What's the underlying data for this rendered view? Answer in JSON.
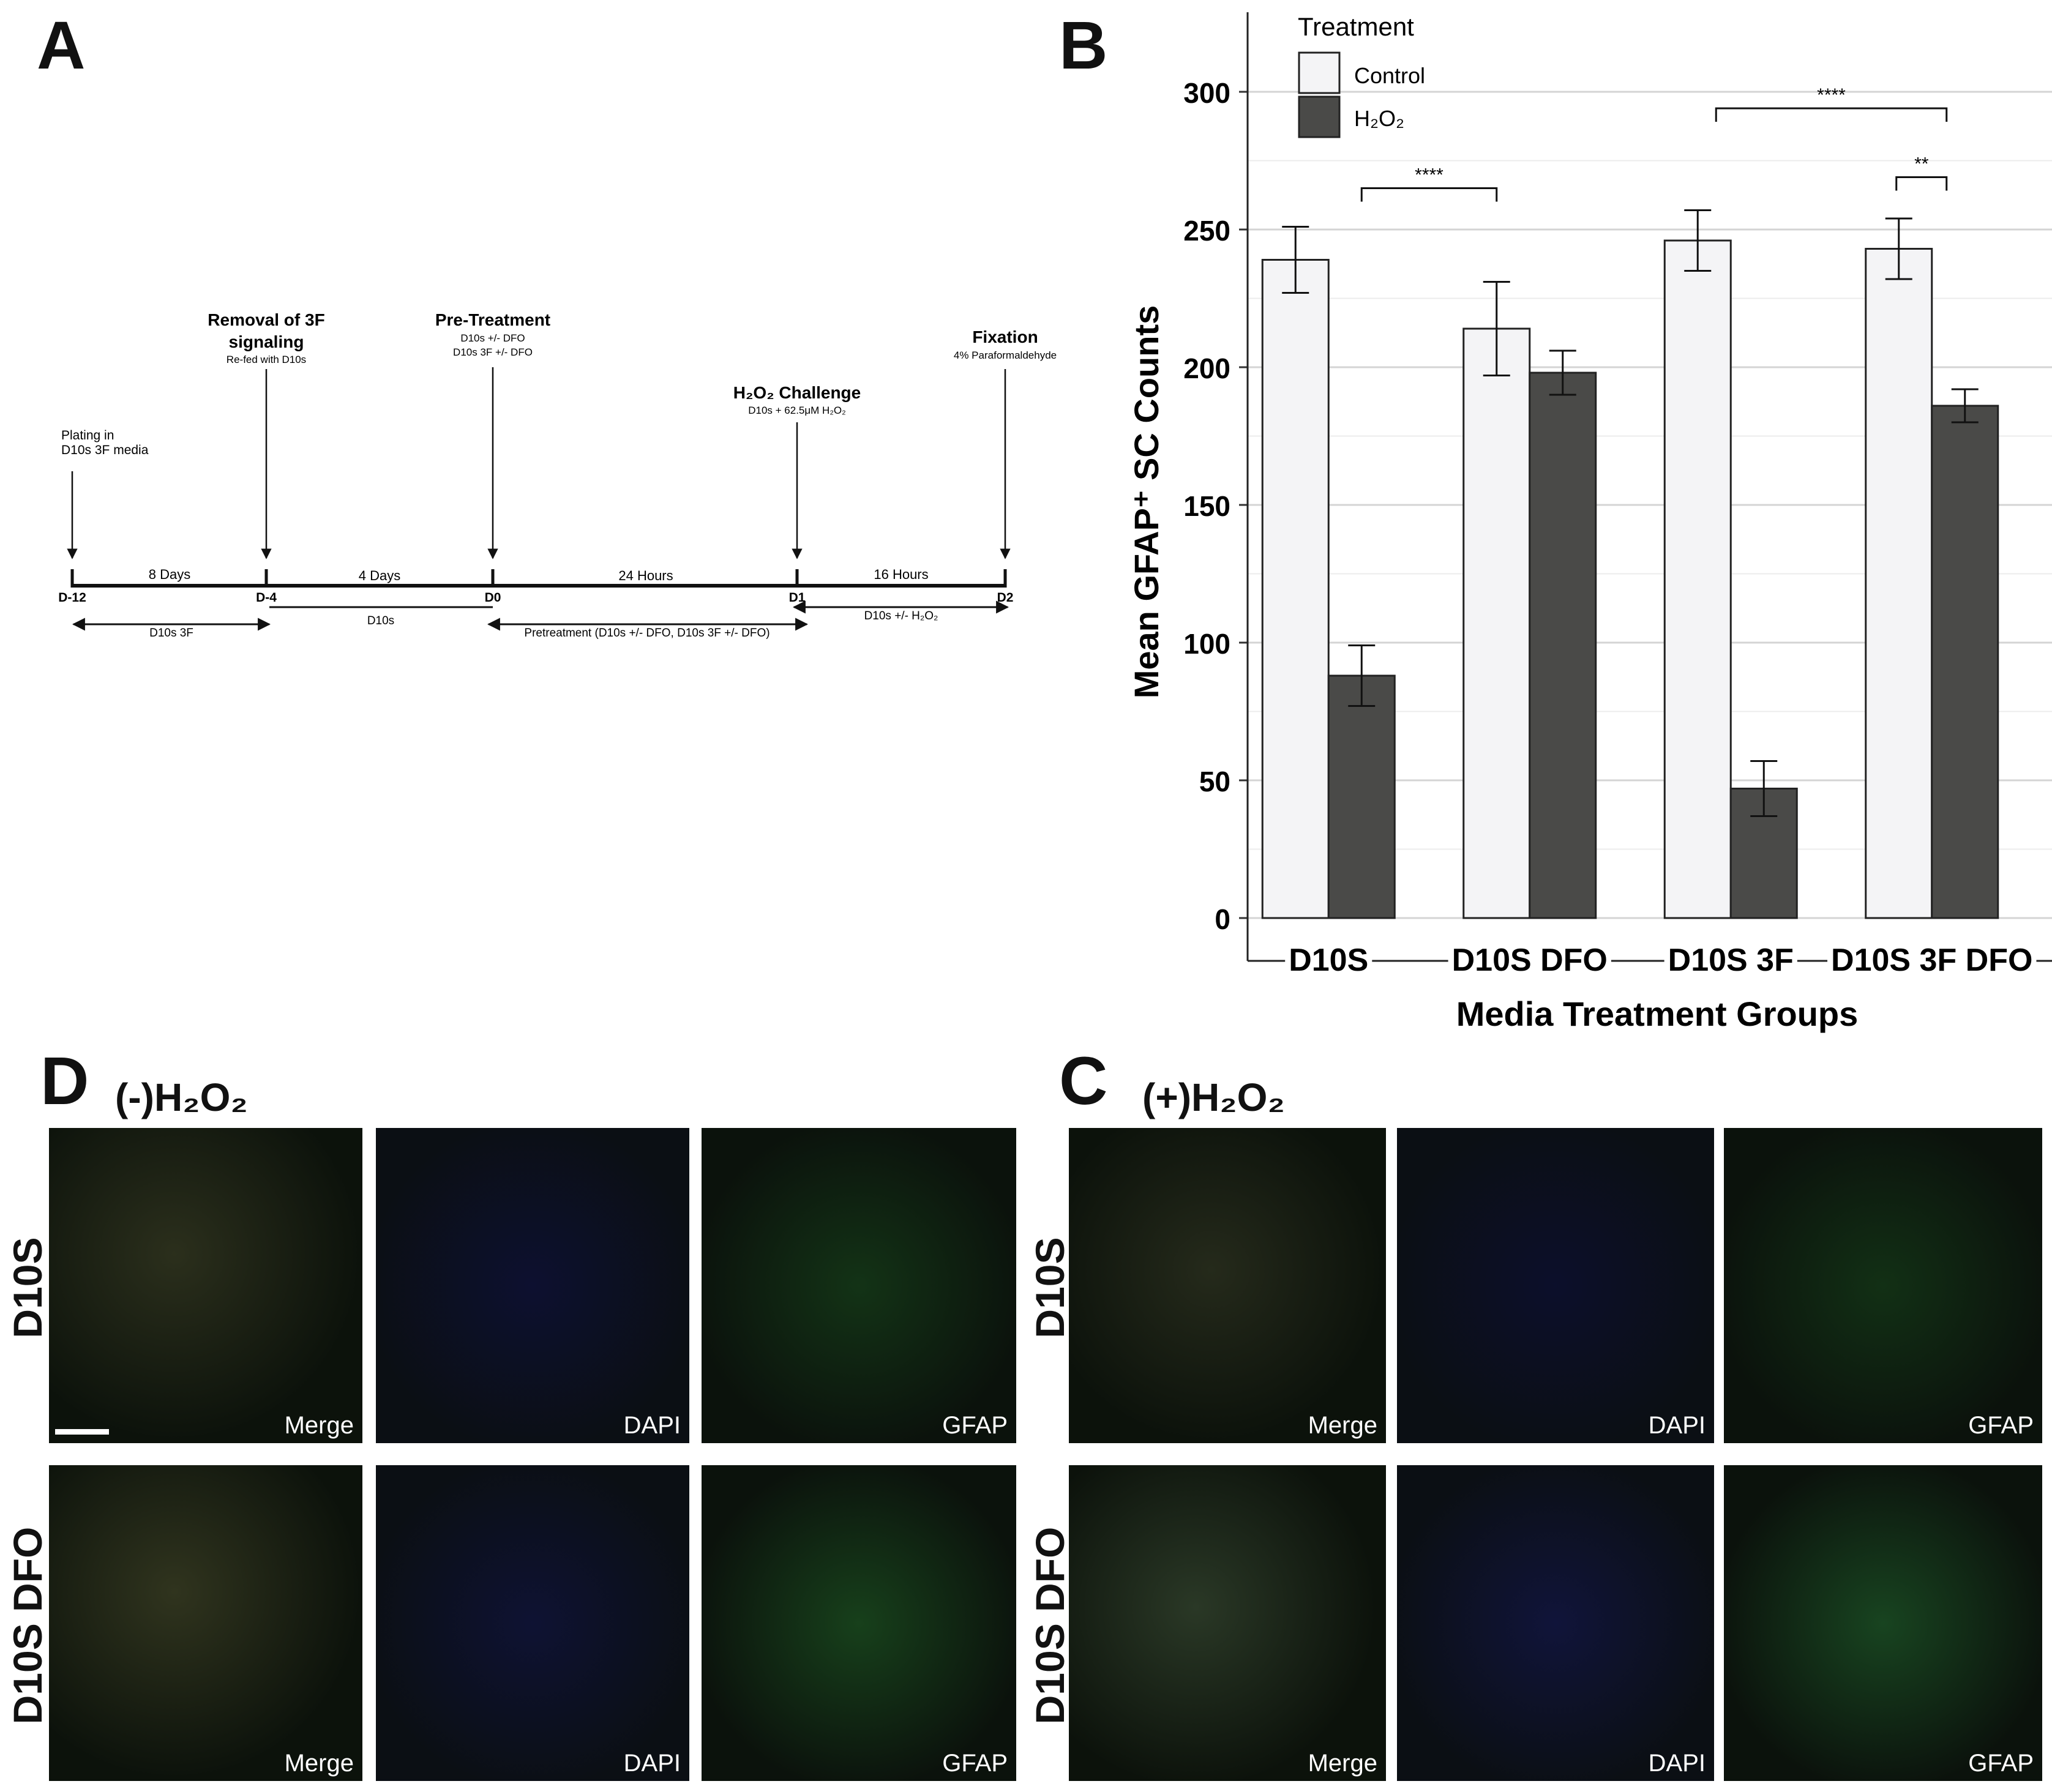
{
  "panels": {
    "a": "A",
    "b": "B",
    "c": "C",
    "d": "D"
  },
  "timeline": {
    "events": [
      {
        "title": "Plating in",
        "sub": "D10s 3F media"
      },
      {
        "title": "Removal of 3F",
        "title2": "signaling",
        "sub": "Re-fed with D10s"
      },
      {
        "title": "Pre-Treatment",
        "sub": "D10s +/- DFO",
        "sub2": "D10s 3F +/- DFO"
      },
      {
        "title": "H₂O₂ Challenge",
        "sub": "D10s + 62.5μM H₂O₂"
      },
      {
        "title": "Fixation",
        "sub": "4% Paraformaldehyde"
      }
    ],
    "ticks": [
      "D-12",
      "D-4",
      "D0",
      "D1",
      "D2"
    ],
    "durations": [
      "8 Days",
      "4 Days",
      "24 Hours",
      "16 Hours"
    ],
    "media": [
      "D10s 3F",
      "D10s",
      "Pretreatment (D10s +/- DFO, D10s 3F +/- DFO)",
      "D10s +/- H₂O₂"
    ]
  },
  "chart_data": {
    "type": "bar",
    "categories": [
      "D10S",
      "D10S DFO",
      "D10S 3F",
      "D10S 3F DFO"
    ],
    "series": [
      {
        "name": "Control",
        "values": [
          239,
          214,
          246,
          243
        ],
        "errors": [
          12,
          17,
          11,
          11
        ],
        "color": "#f4f4f6"
      },
      {
        "name": "H₂O₂",
        "values": [
          88,
          198,
          47,
          186
        ],
        "errors": [
          11,
          8,
          10,
          6
        ],
        "color": "#4a4a48"
      }
    ],
    "xlabel": "Media Treatment Groups",
    "ylabel": "Mean GFAP⁺ SC Counts",
    "legend_title": "Treatment",
    "legend_position": "top-left",
    "ylim": [
      0,
      320
    ],
    "yticks": [
      0,
      50,
      100,
      150,
      200,
      250,
      300
    ],
    "grid": true,
    "significance": [
      {
        "label": "****",
        "from_category": 0,
        "to_category": 1,
        "level": 265
      },
      {
        "label": "****",
        "from_category": 2,
        "to_category": 3,
        "level": 294
      },
      {
        "label": "**",
        "from_category": 3,
        "to_category": 3,
        "level": 269
      }
    ]
  },
  "micrographs": {
    "minus_condition": "(-)H₂O₂",
    "plus_condition": "(+)H₂O₂",
    "rows": [
      "D10S",
      "D10S DFO"
    ],
    "channels": [
      "Merge",
      "DAPI",
      "GFAP"
    ]
  }
}
